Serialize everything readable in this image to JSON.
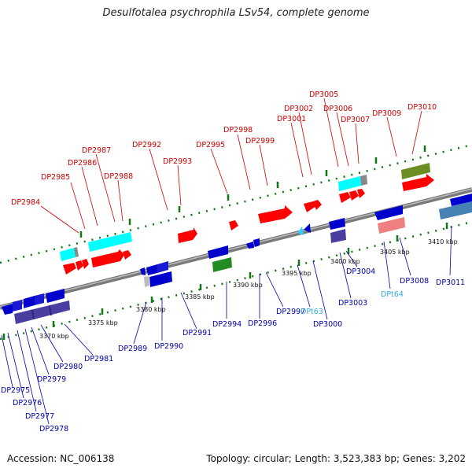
{
  "title": "Desulfotalea psychrophila LSv54, complete genome",
  "accession_label": "Accession:",
  "accession": "NC_006138",
  "topology_label": "Topology:",
  "topology": "circular",
  "length_label": "Length:",
  "length": "3,523,383 bp",
  "genes_label": "Genes:",
  "genes": "3,202",
  "colors": {
    "forward_gene": "#ff0000",
    "reverse_gene": "#0000cc",
    "trna": "#33ccff",
    "rrna": "#00ffff",
    "backbone": "#888888",
    "label_forward": "#cc0000",
    "label_reverse": "#0000aa",
    "label_trna": "#33aadd",
    "tick": "#117711"
  },
  "scale_labels": [
    "3370 kbp",
    "3375 kbp",
    "3380 kbp",
    "3385 kbp",
    "3390 kbp",
    "3395 kbp",
    "3400 kbp",
    "3405 kbp",
    "3410 kbp"
  ],
  "forward_labels": [
    "DP2984",
    "DP2985",
    "DP2986",
    "DP2987",
    "DP2988",
    "DP2992",
    "DP2993",
    "DP2995",
    "DP2998",
    "DP2999",
    "DP3001",
    "DP3002",
    "DP3005",
    "DP3006",
    "DP3007",
    "DP3009",
    "DP3010"
  ],
  "reverse_labels": [
    "DP2975",
    "DP2976",
    "DP2977",
    "DP2978",
    "DP2979",
    "DP2980",
    "DP2981",
    "DP2989",
    "DP2990",
    "DP2991",
    "DP2994",
    "DP2996",
    "DP2997",
    "DPt63",
    "DP3000",
    "DP3003",
    "DP3004",
    "DPt64",
    "DP3008",
    "DP3011"
  ]
}
